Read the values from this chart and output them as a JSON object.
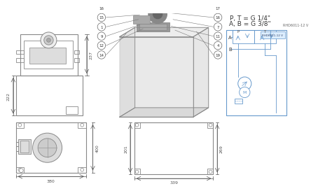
{
  "bg_color": "#ffffff",
  "text_color": "#555555",
  "line_color": "#888888",
  "blue_color": "#6699cc",
  "dark_color": "#444444",
  "title_text1": "P, T = G 1/4\"",
  "title_text2": "A, B = G 3/8\"",
  "label_small": "RHD6011-12 V",
  "dim_237": "237",
  "dim_222": "222",
  "dim_380": "380",
  "dim_400": "400",
  "dim_201": "201",
  "dim_269": "269",
  "dim_339": "339",
  "callouts_left": [
    16,
    15,
    1,
    9,
    12,
    14
  ],
  "callouts_right": [
    17,
    16,
    7,
    11,
    4,
    19
  ]
}
